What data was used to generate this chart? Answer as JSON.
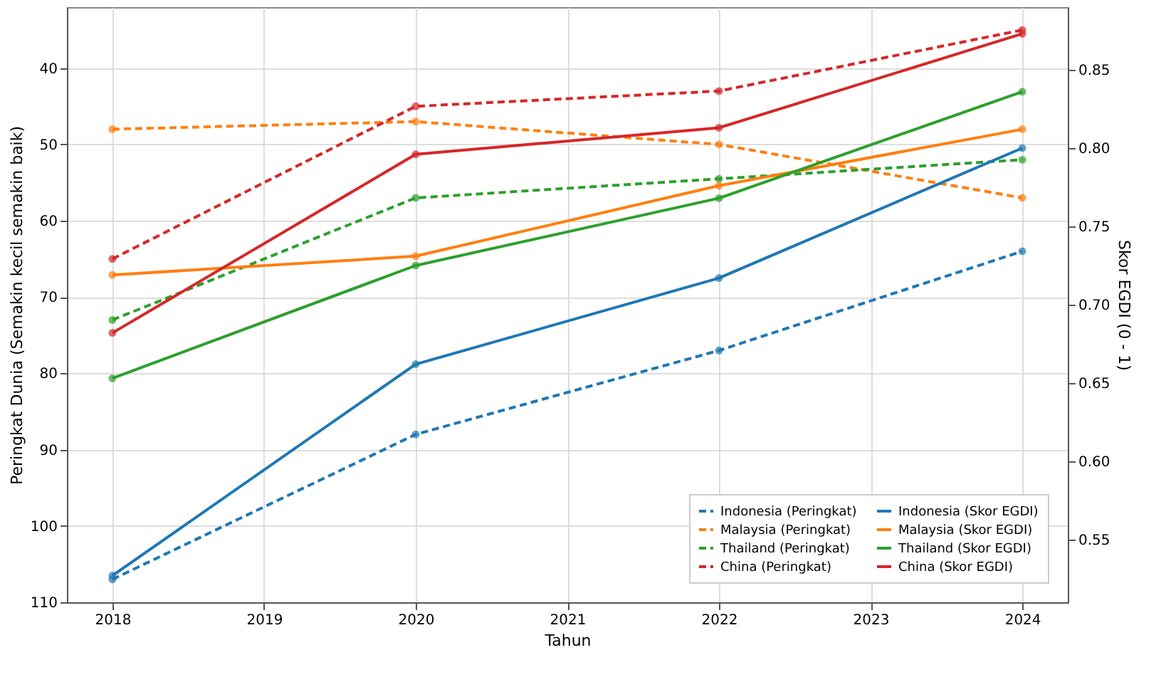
{
  "chart_data": {
    "type": "line",
    "xlabel": "Tahun",
    "ylabel": "Peringkat Dunia (Semakin kecil semakin baik)",
    "y2label": "Skor EGDI (0 - 1)",
    "x": [
      2018,
      2020,
      2022,
      2024
    ],
    "xlim": [
      2017.7,
      2024.3
    ],
    "xticks": [
      2018,
      2019,
      2020,
      2021,
      2022,
      2023,
      2024
    ],
    "ylim": [
      110,
      32
    ],
    "yticks": [
      40,
      50,
      60,
      70,
      80,
      90,
      100,
      110
    ],
    "y2lim": [
      0.51,
      0.89
    ],
    "y2ticks": [
      0.55,
      {
        "value": 0.6,
        "label": "0.60"
      },
      0.65,
      {
        "value": 0.7,
        "label": "0.70"
      },
      0.75,
      {
        "value": 0.8,
        "label": "0.80"
      },
      0.85
    ],
    "grid": true,
    "legend": "bottom right",
    "marker": "circle",
    "series": [
      {
        "name": "Indonesia (Peringkat)",
        "color": "#1f77b4",
        "line_style": "dashed",
        "values": [
          107,
          88,
          77,
          64
        ]
      },
      {
        "name": "Malaysia (Peringkat)",
        "color": "#ff7f0e",
        "line_style": "dashed",
        "values": [
          48,
          47,
          50,
          57
        ]
      },
      {
        "name": "Thailand (Peringkat)",
        "color": "#2ca02c",
        "line_style": "dashed",
        "values": [
          73,
          57,
          54.5,
          52
        ]
      },
      {
        "name": "China (Peringkat)",
        "color": "#d62728",
        "line_style": "dashed",
        "values": [
          65,
          45,
          43,
          35
        ]
      },
      {
        "name": "Indonesia (Skor EGDI)",
        "color": "#1f77b4",
        "line_style": "solid",
        "axis": "y2",
        "values": [
          0.527,
          0.662,
          0.717,
          0.8
        ]
      },
      {
        "name": "Malaysia (Skor EGDI)",
        "color": "#ff7f0e",
        "line_style": "solid",
        "axis": "y2",
        "values": [
          0.719,
          0.731,
          0.776,
          0.812
        ]
      },
      {
        "name": "Thailand (Skor EGDI)",
        "color": "#2ca02c",
        "line_style": "solid",
        "axis": "y2",
        "values": [
          0.653,
          0.725,
          0.768,
          0.836
        ]
      },
      {
        "name": "China (Skor EGDI)",
        "color": "#d62728",
        "line_style": "solid",
        "axis": "y2",
        "values": [
          0.682,
          0.796,
          0.813,
          0.873
        ]
      }
    ]
  }
}
